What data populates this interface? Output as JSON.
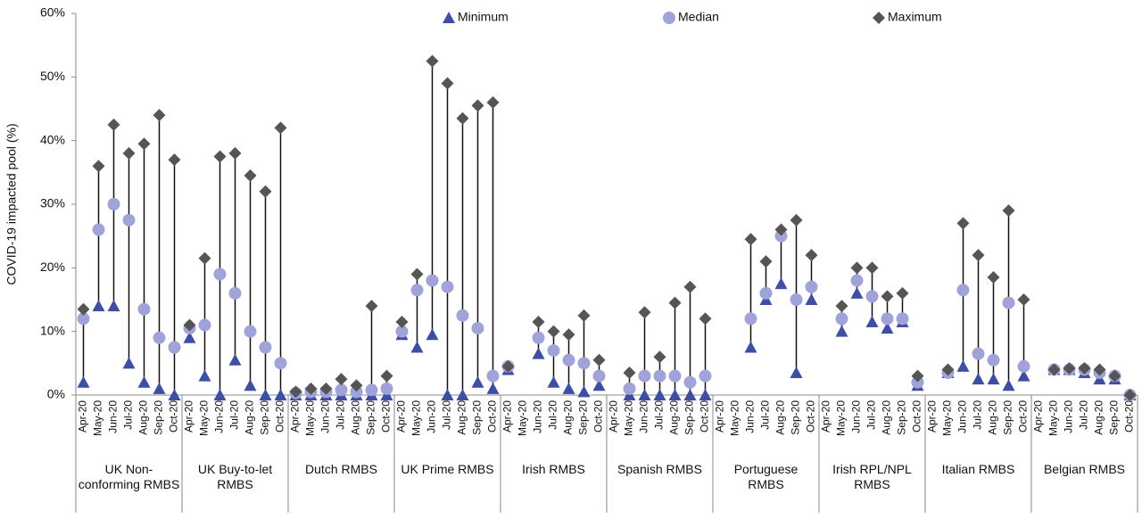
{
  "chart_data": {
    "type": "high-low",
    "y_label": "COVID-19 impacted pool (%)",
    "ylim": [
      0,
      60
    ],
    "yticks": [
      {
        "value": 0,
        "label": "0%"
      },
      {
        "value": 10,
        "label": "10%"
      },
      {
        "value": 20,
        "label": "20%"
      },
      {
        "value": 30,
        "label": "30%"
      },
      {
        "value": 40,
        "label": "40%"
      },
      {
        "value": 50,
        "label": "50%"
      },
      {
        "value": 60,
        "label": "60%"
      }
    ],
    "legend": "top",
    "groups": [
      "UK Non-conforming RMBS",
      "UK Buy-to-let RMBS",
      "Dutch RMBS",
      "UK Prime RMBS",
      "Irish RMBS",
      "Spanish RMBS",
      "Portuguese RMBS",
      "Irish RPL/NPL RMBS",
      "Italian RMBS",
      "Belgian RMBS"
    ],
    "categories": [
      "Apr-20",
      "May-20",
      "Jun-20",
      "Jul-20",
      "Aug-20",
      "Sep-20",
      "Oct-20",
      "Apr-20",
      "May-20",
      "Jun-20",
      "Jul-20",
      "Aug-20",
      "Sep-20",
      "Oct-20",
      "Apr-20",
      "May-20",
      "Jun-20",
      "Jul-20",
      "Aug-20",
      "Sep-20",
      "Oct-20",
      "Apr-20",
      "May-20",
      "Jun-20",
      "Jul-20",
      "Aug-20",
      "Sep-20",
      "Oct-20",
      "Apr-20",
      "May-20",
      "Jun-20",
      "Jul-20",
      "Aug-20",
      "Sep-20",
      "Oct-20",
      "Apr-20",
      "May-20",
      "Jun-20",
      "Jul-20",
      "Aug-20",
      "Sep-20",
      "Oct-20",
      "Apr-20",
      "May-20",
      "Jun-20",
      "Jul-20",
      "Aug-20",
      "Sep-20",
      "Oct-20",
      "Apr-20",
      "May-20",
      "Jun-20",
      "Jul-20",
      "Aug-20",
      "Sep-20",
      "Oct-20",
      "Apr-20",
      "May-20",
      "Jun-20",
      "Jul-20",
      "Aug-20",
      "Sep-20",
      "Oct-20",
      "Apr-20",
      "May-20",
      "Jun-20",
      "Jul-20",
      "Aug-20",
      "Sep-20",
      "Oct-20"
    ],
    "series": [
      {
        "name": "Minimum",
        "color": "#3d4ea3",
        "marker": "triangle",
        "values": [
          2,
          14,
          14,
          5,
          2,
          1,
          0,
          9,
          3,
          0,
          5.5,
          1.5,
          0,
          0,
          0,
          0,
          0,
          0,
          0,
          0,
          0,
          9.5,
          7.5,
          9.5,
          0,
          0,
          2,
          1,
          4,
          null,
          6.5,
          2,
          1,
          0.5,
          1.5,
          null,
          0,
          0,
          0,
          0,
          0,
          0,
          null,
          null,
          7.5,
          15,
          17.5,
          3.5,
          15,
          null,
          10,
          16,
          11.5,
          10.5,
          11.5,
          1.5,
          null,
          3.5,
          4.5,
          2.5,
          2.5,
          1.5,
          3,
          null,
          4,
          4,
          3.5,
          2.5,
          2.5,
          0
        ]
      },
      {
        "name": "Median",
        "color": "#a0a3d8",
        "marker": "circle",
        "values": [
          12,
          26,
          30,
          27.5,
          13.5,
          9,
          7.5,
          10.5,
          11,
          19,
          16,
          10,
          7.5,
          5,
          0.3,
          0.5,
          0.5,
          0.8,
          0.5,
          0.8,
          1,
          10,
          16.5,
          18,
          17,
          12.5,
          10.5,
          3,
          4.5,
          null,
          9,
          7,
          5.5,
          5,
          3,
          null,
          1,
          3,
          3,
          3,
          2,
          3,
          null,
          null,
          12,
          16,
          25,
          15,
          17,
          null,
          12,
          18,
          15.5,
          12,
          12,
          2,
          null,
          3.5,
          16.5,
          6.5,
          5.5,
          14.5,
          4.5,
          null,
          4,
          4,
          4,
          3.5,
          3,
          0
        ]
      },
      {
        "name": "Maximum",
        "color": "#555555",
        "marker": "diamond",
        "values": [
          13.5,
          36,
          42.5,
          38,
          39.5,
          44,
          37,
          11,
          21.5,
          37.5,
          38,
          34.5,
          32,
          42,
          0.5,
          1,
          1,
          2.5,
          1.5,
          14,
          3,
          11.5,
          19,
          52.5,
          49,
          43.5,
          45.5,
          46,
          4.5,
          null,
          11.5,
          10,
          9.5,
          12.5,
          5.5,
          null,
          3.5,
          13,
          6,
          14.5,
          17,
          12,
          null,
          null,
          24.5,
          21,
          26,
          27.5,
          22,
          null,
          14,
          20,
          20,
          15.5,
          16,
          3,
          null,
          4,
          27,
          22,
          18.5,
          29,
          15,
          null,
          4,
          4.2,
          4.2,
          4,
          3,
          0
        ]
      }
    ]
  }
}
